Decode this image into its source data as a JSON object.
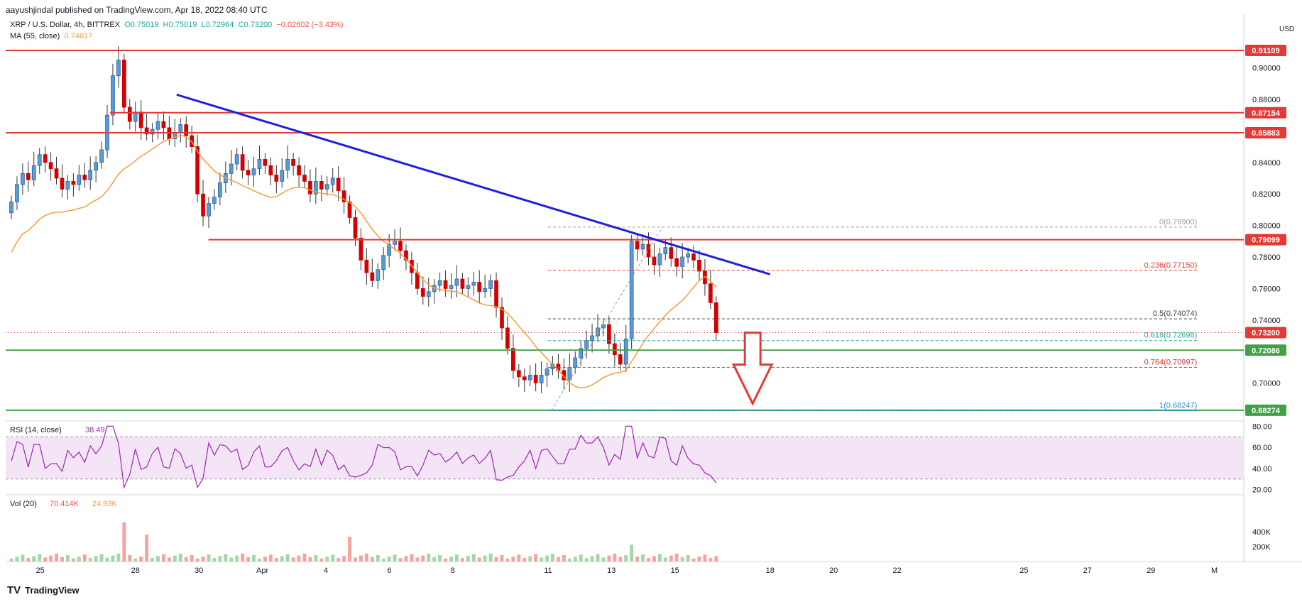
{
  "published": "aayushjindal published on TradingView.com, Apr 18, 2022 08:40 UTC",
  "header": {
    "symbol": "XRP / U.S. Dollar, 4h, BITTREX",
    "o": "O0.75019",
    "h": "H0.75019",
    "l": "L0.72964",
    "c": "C0.73200",
    "change": "−0.02602 (−3.43%)",
    "ma_label": "MA (55, close)",
    "ma_value": "0.74617"
  },
  "footer": {
    "brand": "TradingView"
  },
  "colors": {
    "up": "#26a69a",
    "down": "#ef5350",
    "resistance": "#e53935",
    "support": "#43a047",
    "trend": "#1f1fe0",
    "ma": "#f59e3a",
    "rsi": "#9c27b0",
    "rsi_band": "#f3e5f5"
  },
  "chart_data": [
    {
      "type": "candlestick",
      "title": "XRP / U.S. Dollar, 4h, BITTREX",
      "currency": "USD",
      "ylim": [
        0.68,
        0.93
      ],
      "y_ticks": [
        "0.70000",
        "0.72000",
        "0.74000",
        "0.76000",
        "0.78000",
        "0.80000",
        "0.82000",
        "0.84000",
        "0.86000",
        "0.88000",
        "0.90000"
      ],
      "x_ticks": [
        "25",
        "28",
        "30",
        "Apr",
        "4",
        "6",
        "8",
        "11",
        "13",
        "15",
        "18",
        "20",
        "22",
        "25",
        "27",
        "29",
        "M"
      ],
      "last_price": "0.73200",
      "horizontal_levels": [
        {
          "value": 0.91109,
          "label": "0.91109",
          "kind": "resistance"
        },
        {
          "value": 0.87154,
          "label": "0.87154",
          "kind": "resistance"
        },
        {
          "value": 0.85883,
          "label": "0.85883",
          "kind": "resistance"
        },
        {
          "value": 0.79099,
          "label": "0.79099",
          "kind": "resistance"
        },
        {
          "value": 0.72086,
          "label": "0.72086",
          "kind": "support"
        },
        {
          "value": 0.68274,
          "label": "0.68274",
          "kind": "support"
        }
      ],
      "fibonacci": [
        {
          "ratio": "0",
          "value": 0.799,
          "label": "0(0.79900)"
        },
        {
          "ratio": "0.236",
          "value": 0.7715,
          "label": "0.236(0.77150)"
        },
        {
          "ratio": "0.5",
          "value": 0.74074,
          "label": "0.5(0.74074)"
        },
        {
          "ratio": "0.618",
          "value": 0.72698,
          "label": "0.618(0.72698)"
        },
        {
          "ratio": "0.764",
          "value": 0.70997,
          "label": "0.764(0.70997)"
        },
        {
          "ratio": "1",
          "value": 0.68247,
          "label": "1(0.68247)"
        }
      ],
      "trendline": {
        "from": {
          "date": "Mar 29",
          "value": 0.883
        },
        "to": {
          "date": "Apr 19",
          "value": 0.769
        }
      },
      "annotation": "down arrow"
    },
    {
      "type": "line",
      "title": "RSI (14, close)",
      "value_label": "38.49",
      "ylim": [
        15,
        85
      ],
      "y_ticks": [
        "20.00",
        "40.00",
        "60.00",
        "80.00"
      ],
      "bands": [
        30,
        70
      ]
    },
    {
      "type": "bar",
      "title": "Vol (20)",
      "values_label": [
        "70.414K",
        "24.93K"
      ],
      "y_ticks": [
        "200K",
        "400K"
      ]
    }
  ]
}
